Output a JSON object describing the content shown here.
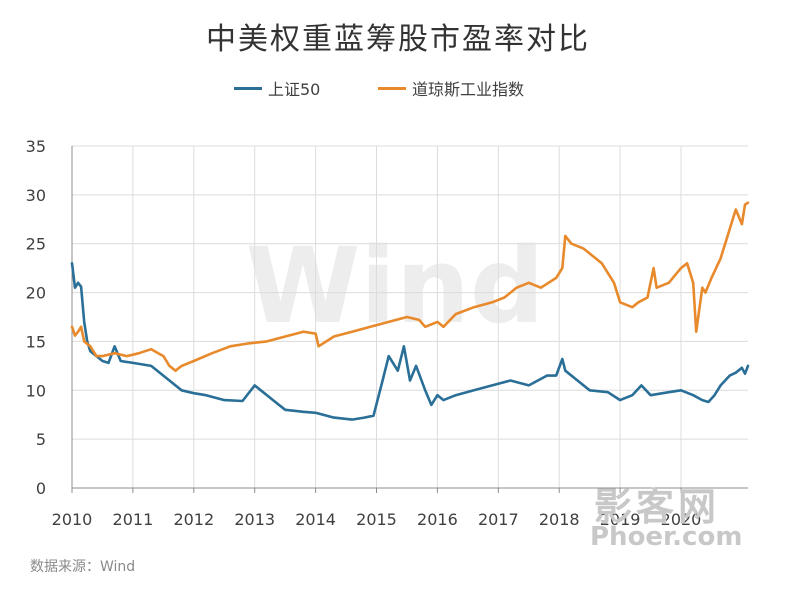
{
  "chart_data": {
    "type": "line",
    "title": "中美权重蓝筹股市盈率对比",
    "ylim": [
      0,
      35
    ],
    "y_ticks": [
      "0",
      "5",
      "10",
      "15",
      "20",
      "25",
      "30",
      "35"
    ],
    "x_range": [
      2010,
      2021.1
    ],
    "x_ticks": [
      "2010",
      "2011",
      "2012",
      "2013",
      "2014",
      "2015",
      "2016",
      "2017",
      "2018",
      "2019",
      "2020"
    ],
    "grid": true,
    "legend": "top-center",
    "series": [
      {
        "name": "上证50",
        "color": "#2a6f97",
        "x": [
          2010.0,
          2010.05,
          2010.1,
          2010.15,
          2010.2,
          2010.25,
          2010.3,
          2010.4,
          2010.5,
          2010.6,
          2010.7,
          2010.8,
          2011.0,
          2011.3,
          2011.6,
          2011.8,
          2012.0,
          2012.2,
          2012.5,
          2012.8,
          2013.0,
          2013.1,
          2013.3,
          2013.5,
          2013.8,
          2014.0,
          2014.3,
          2014.6,
          2014.8,
          2014.95,
          2015.1,
          2015.2,
          2015.35,
          2015.45,
          2015.55,
          2015.65,
          2015.8,
          2015.9,
          2016.0,
          2016.1,
          2016.3,
          2016.6,
          2016.9,
          2017.2,
          2017.5,
          2017.8,
          2017.95,
          2018.05,
          2018.1,
          2018.3,
          2018.5,
          2018.8,
          2019.0,
          2019.2,
          2019.35,
          2019.5,
          2019.8,
          2020.0,
          2020.2,
          2020.35,
          2020.45,
          2020.55,
          2020.65,
          2020.8,
          2020.9,
          2021.0,
          2021.05,
          2021.1
        ],
        "values": [
          23.0,
          20.5,
          21.0,
          20.6,
          17.0,
          15.0,
          14.0,
          13.5,
          13.0,
          12.8,
          14.5,
          13.0,
          12.8,
          12.5,
          11.0,
          10.0,
          9.7,
          9.5,
          9.0,
          8.9,
          10.5,
          10.0,
          9.0,
          8.0,
          7.8,
          7.7,
          7.2,
          7.0,
          7.2,
          7.4,
          11.0,
          13.5,
          12.0,
          14.5,
          11.0,
          12.5,
          10.0,
          8.5,
          9.5,
          9.0,
          9.5,
          10.0,
          10.5,
          11.0,
          10.5,
          11.5,
          11.5,
          13.2,
          12.0,
          11.0,
          10.0,
          9.8,
          9.0,
          9.5,
          10.5,
          9.5,
          9.8,
          10.0,
          9.5,
          9.0,
          8.8,
          9.5,
          10.5,
          11.5,
          11.8,
          12.3,
          11.7,
          12.5
        ]
      },
      {
        "name": "道琼斯工业指数",
        "color": "#e8892b",
        "x": [
          2010.0,
          2010.05,
          2010.1,
          2010.15,
          2010.2,
          2010.3,
          2010.4,
          2010.5,
          2010.7,
          2010.9,
          2011.1,
          2011.3,
          2011.5,
          2011.6,
          2011.7,
          2011.8,
          2012.0,
          2012.3,
          2012.6,
          2012.9,
          2013.2,
          2013.5,
          2013.8,
          2014.0,
          2014.05,
          2014.3,
          2014.6,
          2014.9,
          2015.2,
          2015.5,
          2015.7,
          2015.8,
          2016.0,
          2016.1,
          2016.3,
          2016.6,
          2016.9,
          2017.1,
          2017.3,
          2017.5,
          2017.7,
          2017.95,
          2018.05,
          2018.1,
          2018.2,
          2018.4,
          2018.6,
          2018.7,
          2018.9,
          2019.0,
          2019.2,
          2019.3,
          2019.45,
          2019.55,
          2019.6,
          2019.8,
          2020.0,
          2020.1,
          2020.2,
          2020.25,
          2020.35,
          2020.4,
          2020.5,
          2020.65,
          2020.8,
          2020.9,
          2021.0,
          2021.05,
          2021.1
        ],
        "values": [
          16.5,
          15.6,
          16.0,
          16.5,
          15.0,
          14.5,
          13.5,
          13.5,
          13.8,
          13.5,
          13.8,
          14.2,
          13.5,
          12.5,
          12.0,
          12.5,
          13.0,
          13.8,
          14.5,
          14.8,
          15.0,
          15.5,
          16.0,
          15.8,
          14.5,
          15.5,
          16.0,
          16.5,
          17.0,
          17.5,
          17.2,
          16.5,
          17.0,
          16.5,
          17.8,
          18.5,
          19.0,
          19.5,
          20.5,
          21.0,
          20.5,
          21.5,
          22.5,
          25.8,
          25.0,
          24.5,
          23.5,
          23.0,
          21.0,
          19.0,
          18.5,
          19.0,
          19.5,
          22.5,
          20.5,
          21.0,
          22.5,
          23.0,
          21.0,
          16.0,
          20.5,
          20.0,
          21.5,
          23.5,
          26.5,
          28.5,
          27.0,
          29.0,
          29.2
        ]
      }
    ]
  },
  "source_text": "数据来源：Wind",
  "watermark": {
    "chart_text": "Wind",
    "site_text": "影客网",
    "url_text": "Phoer.com"
  }
}
